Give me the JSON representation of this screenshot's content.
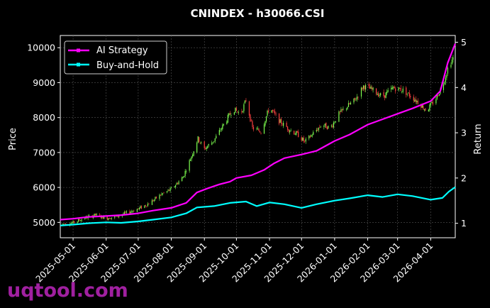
{
  "chart_data": {
    "type": "line",
    "title": "CNINDEX - h30066.CSI",
    "ylabel": "Price",
    "y2label": "Return",
    "xlim": [
      "2025-04-19",
      "2026-04-24"
    ],
    "ylim": [
      4560,
      10350
    ],
    "y2lim": [
      0.68,
      5.15
    ],
    "grid": true,
    "legend_position": "top-left",
    "x_ticks": [
      "2025-05-01",
      "2025-06-01",
      "2025-07-01",
      "2025-08-01",
      "2025-09-01",
      "2025-10-01",
      "2025-11-01",
      "2025-12-01",
      "2026-01-01",
      "2026-02-01",
      "2026-03-01",
      "2026-04-01"
    ],
    "y_ticks": [
      5000,
      6000,
      7000,
      8000,
      9000,
      10000
    ],
    "y2_ticks": [
      1,
      2,
      3,
      4,
      5
    ],
    "candles": [
      [
        "2025-04-20",
        4950
      ],
      [
        "2025-05-01",
        4990
      ],
      [
        "2025-05-12",
        5130
      ],
      [
        "2025-05-22",
        5210
      ],
      [
        "2025-06-01",
        5120
      ],
      [
        "2025-06-12",
        5180
      ],
      [
        "2025-06-22",
        5290
      ],
      [
        "2025-07-02",
        5400
      ],
      [
        "2025-07-12",
        5560
      ],
      [
        "2025-07-22",
        5790
      ],
      [
        "2025-08-01",
        5950
      ],
      [
        "2025-08-12",
        6300
      ],
      [
        "2025-08-20",
        6900
      ],
      [
        "2025-08-26",
        7400
      ],
      [
        "2025-09-01",
        7100
      ],
      [
        "2025-09-10",
        7350
      ],
      [
        "2025-09-20",
        7850
      ],
      [
        "2025-09-28",
        8250
      ],
      [
        "2025-10-05",
        8100
      ],
      [
        "2025-10-10",
        8500
      ],
      [
        "2025-10-16",
        7700
      ],
      [
        "2025-10-24",
        7600
      ],
      [
        "2025-11-01",
        8300
      ],
      [
        "2025-11-10",
        7900
      ],
      [
        "2025-11-20",
        7650
      ],
      [
        "2025-11-28",
        7500
      ],
      [
        "2025-12-04",
        7300
      ],
      [
        "2025-12-12",
        7550
      ],
      [
        "2025-12-20",
        7800
      ],
      [
        "2025-12-28",
        7700
      ],
      [
        "2026-01-05",
        8100
      ],
      [
        "2026-01-12",
        8300
      ],
      [
        "2026-01-20",
        8500
      ],
      [
        "2026-01-28",
        8900
      ],
      [
        "2026-02-05",
        8800
      ],
      [
        "2026-02-15",
        8600
      ],
      [
        "2026-02-25",
        8850
      ],
      [
        "2026-03-05",
        8800
      ],
      [
        "2026-03-12",
        8650
      ],
      [
        "2026-03-20",
        8450
      ],
      [
        "2026-03-28",
        8200
      ],
      [
        "2026-04-05",
        8500
      ],
      [
        "2026-04-12",
        8900
      ],
      [
        "2026-04-18",
        9500
      ],
      [
        "2026-04-22",
        9700
      ]
    ],
    "series": [
      {
        "name": "AI Strategy",
        "color": "#ff00ff",
        "points": [
          [
            "2025-04-19",
            1.08
          ],
          [
            "2025-05-01",
            1.1
          ],
          [
            "2025-05-15",
            1.14
          ],
          [
            "2025-06-01",
            1.16
          ],
          [
            "2025-06-15",
            1.18
          ],
          [
            "2025-07-01",
            1.22
          ],
          [
            "2025-07-15",
            1.28
          ],
          [
            "2025-08-01",
            1.34
          ],
          [
            "2025-08-15",
            1.45
          ],
          [
            "2025-08-25",
            1.68
          ],
          [
            "2025-09-05",
            1.78
          ],
          [
            "2025-09-15",
            1.86
          ],
          [
            "2025-09-25",
            1.92
          ],
          [
            "2025-10-01",
            2.0
          ],
          [
            "2025-10-15",
            2.06
          ],
          [
            "2025-10-27",
            2.18
          ],
          [
            "2025-11-05",
            2.32
          ],
          [
            "2025-11-15",
            2.44
          ],
          [
            "2025-12-01",
            2.52
          ],
          [
            "2025-12-15",
            2.6
          ],
          [
            "2026-01-01",
            2.82
          ],
          [
            "2026-01-15",
            2.96
          ],
          [
            "2026-02-01",
            3.18
          ],
          [
            "2026-02-15",
            3.3
          ],
          [
            "2026-03-01",
            3.42
          ],
          [
            "2026-03-15",
            3.54
          ],
          [
            "2026-04-01",
            3.7
          ],
          [
            "2026-04-10",
            3.92
          ],
          [
            "2026-04-17",
            4.55
          ],
          [
            "2026-04-24",
            4.97
          ]
        ]
      },
      {
        "name": "Buy-and-Hold",
        "color": "#00ffff",
        "points": [
          [
            "2025-04-19",
            0.95
          ],
          [
            "2025-05-01",
            0.97
          ],
          [
            "2025-05-15",
            1.0
          ],
          [
            "2025-06-01",
            1.02
          ],
          [
            "2025-06-15",
            1.01
          ],
          [
            "2025-07-01",
            1.04
          ],
          [
            "2025-07-15",
            1.08
          ],
          [
            "2025-08-01",
            1.13
          ],
          [
            "2025-08-15",
            1.22
          ],
          [
            "2025-08-25",
            1.35
          ],
          [
            "2025-09-10",
            1.38
          ],
          [
            "2025-09-25",
            1.45
          ],
          [
            "2025-10-10",
            1.48
          ],
          [
            "2025-10-20",
            1.38
          ],
          [
            "2025-11-01",
            1.46
          ],
          [
            "2025-11-15",
            1.42
          ],
          [
            "2025-12-01",
            1.34
          ],
          [
            "2025-12-15",
            1.42
          ],
          [
            "2026-01-01",
            1.5
          ],
          [
            "2026-01-15",
            1.55
          ],
          [
            "2026-02-01",
            1.62
          ],
          [
            "2026-02-15",
            1.58
          ],
          [
            "2026-03-01",
            1.64
          ],
          [
            "2026-03-15",
            1.6
          ],
          [
            "2026-04-01",
            1.52
          ],
          [
            "2026-04-12",
            1.56
          ],
          [
            "2026-04-18",
            1.7
          ],
          [
            "2026-04-24",
            1.8
          ]
        ]
      }
    ]
  },
  "watermark": "uqtool.com"
}
